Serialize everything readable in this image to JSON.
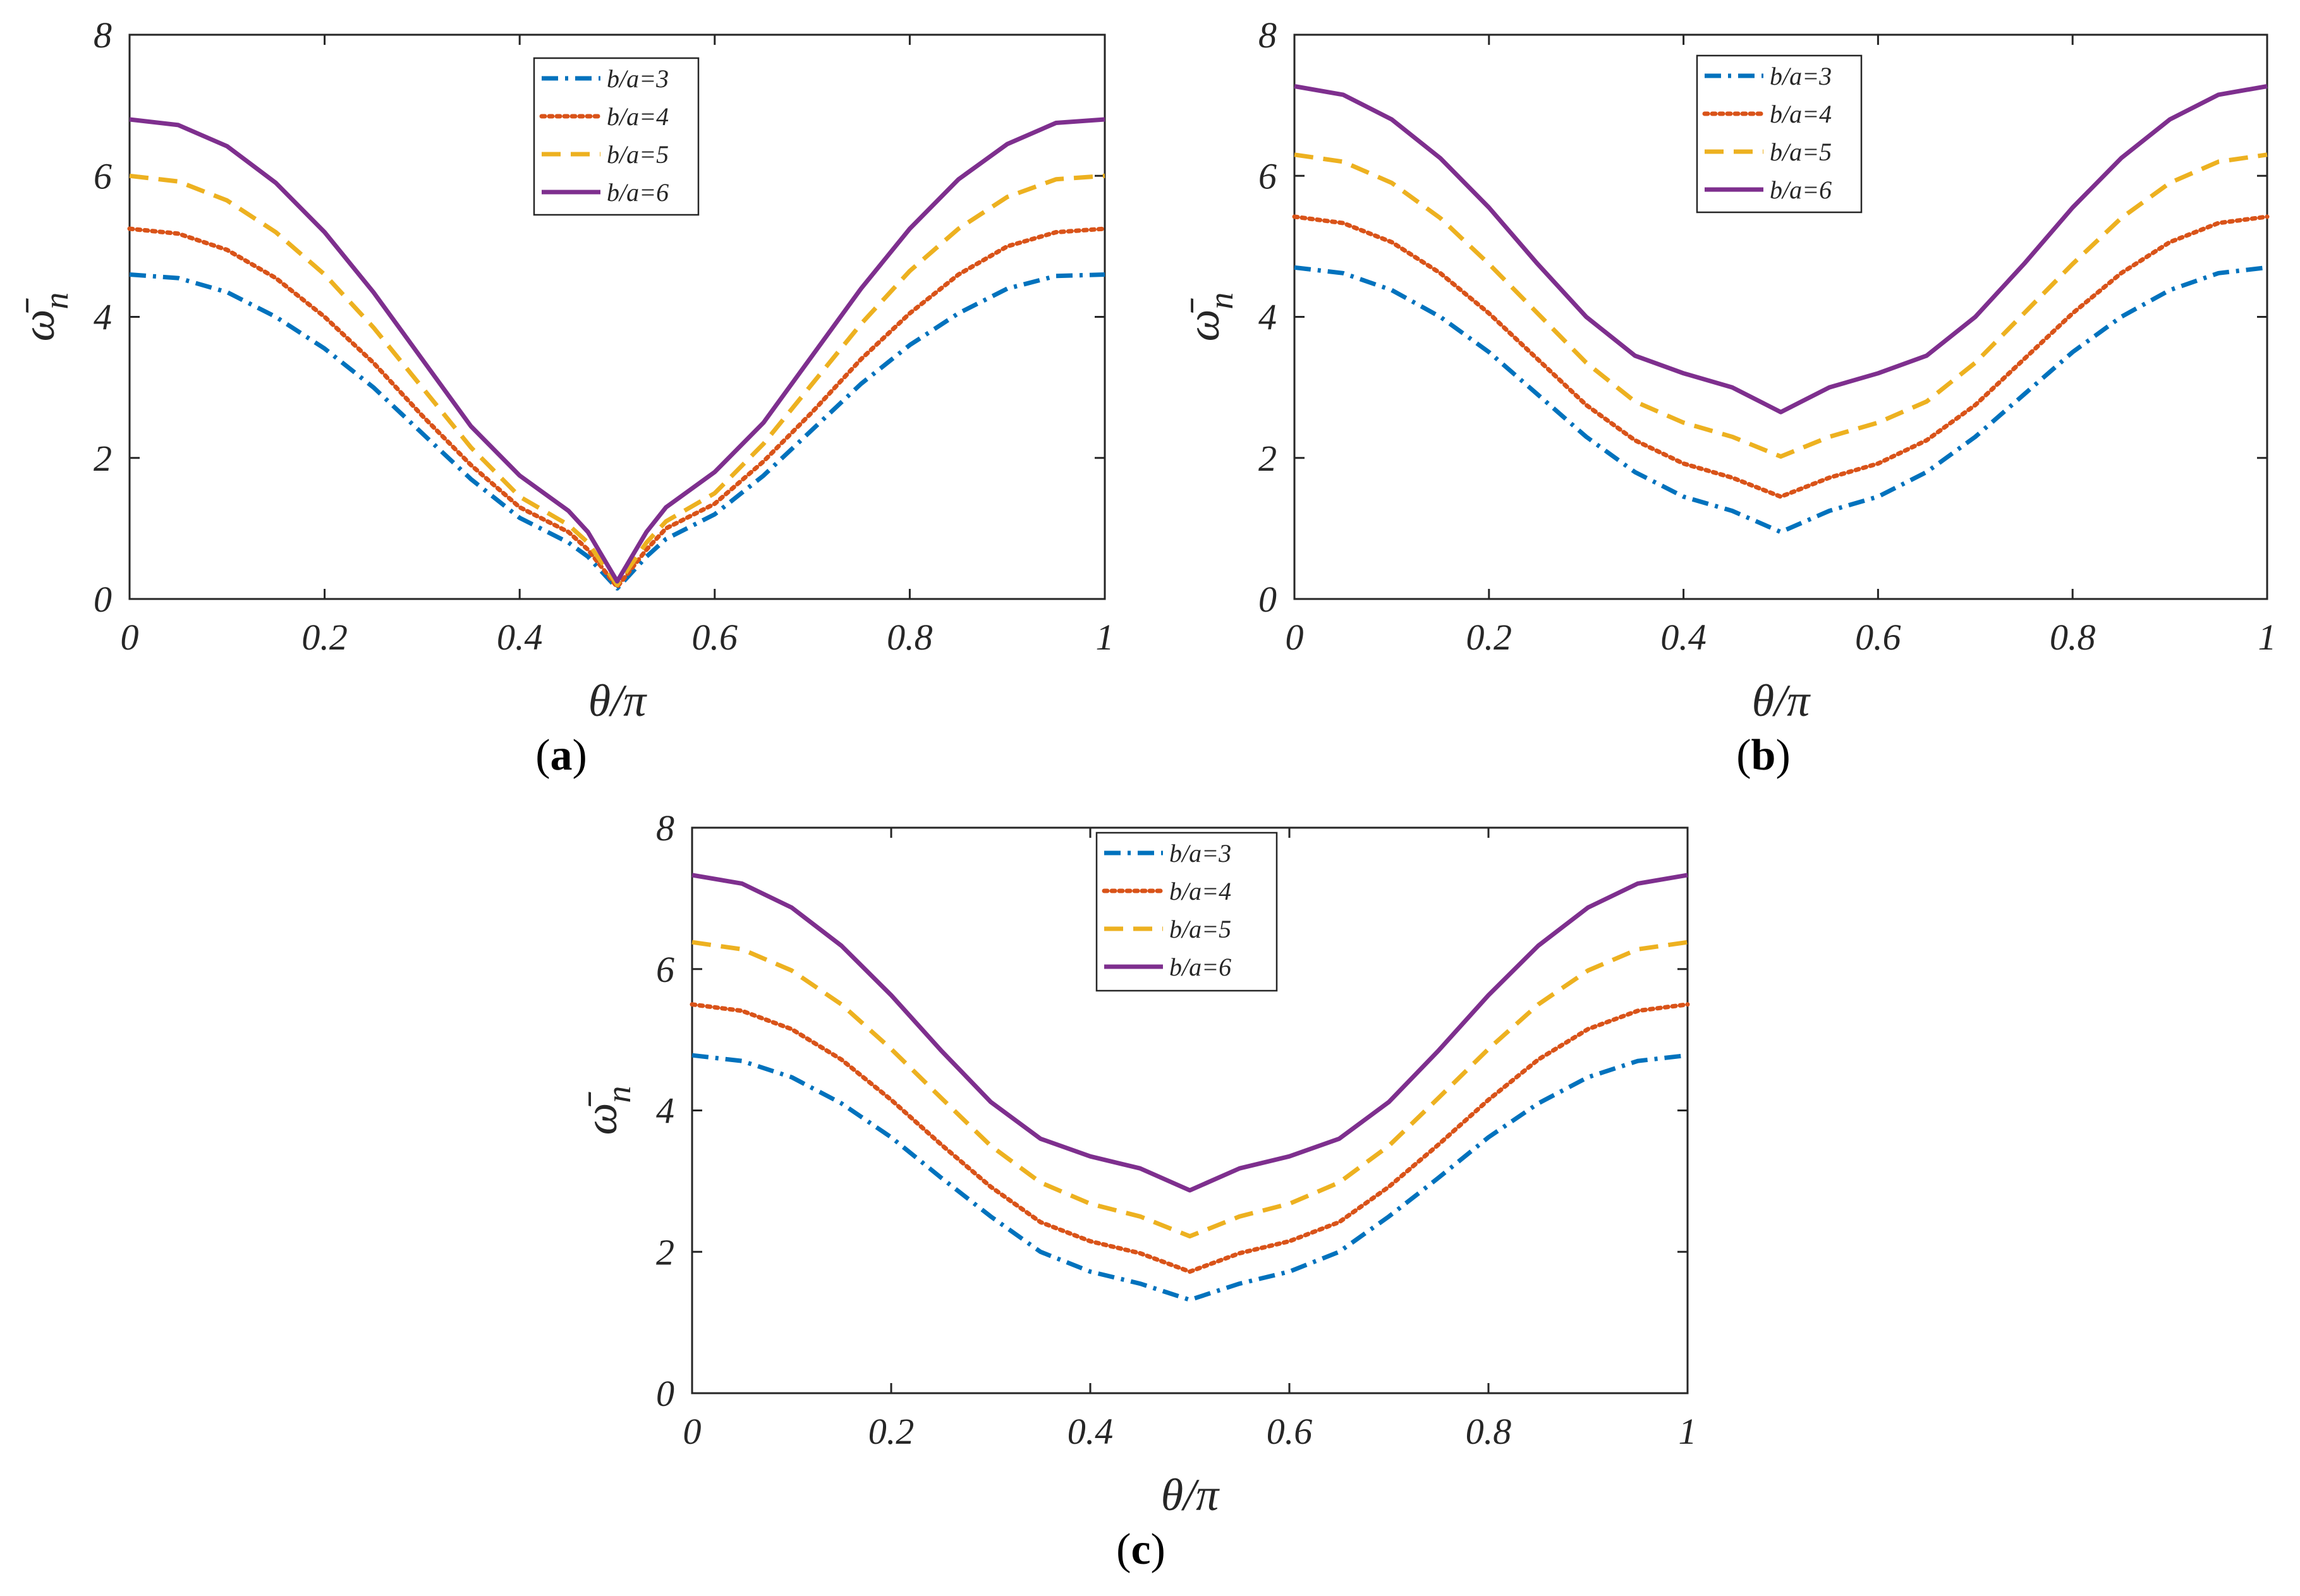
{
  "chart_data": [
    {
      "type": "line",
      "panel_label": "a",
      "xlabel": "θ/π",
      "ylabel": "ω̄",
      "ylabel_sub": "n",
      "xlim": [
        0,
        1
      ],
      "ylim": [
        0,
        8
      ],
      "xticks": [
        0,
        0.2,
        0.4,
        0.6,
        0.8,
        1
      ],
      "xtick_labels": [
        "0",
        "0.2",
        "0.4",
        "0.6",
        "0.8",
        "1"
      ],
      "yticks": [
        0,
        2,
        4,
        6,
        8
      ],
      "ytick_labels": [
        "0",
        "2",
        "4",
        "6",
        "8"
      ],
      "legend_position": "top-center",
      "x": [
        0,
        0.05,
        0.1,
        0.15,
        0.2,
        0.25,
        0.3,
        0.35,
        0.4,
        0.45,
        0.47,
        0.5,
        0.53,
        0.55,
        0.6,
        0.65,
        0.7,
        0.75,
        0.8,
        0.85,
        0.9,
        0.95,
        1
      ],
      "series": [
        {
          "name": "b/a=3",
          "color": "#0072BD",
          "style": "dashdot",
          "values": [
            4.6,
            4.55,
            4.35,
            4.0,
            3.55,
            3.0,
            2.35,
            1.7,
            1.15,
            0.8,
            0.6,
            0.15,
            0.6,
            0.85,
            1.2,
            1.75,
            2.4,
            3.05,
            3.6,
            4.05,
            4.4,
            4.58,
            4.6
          ]
        },
        {
          "name": "b/a=4",
          "color": "#D95319",
          "style": "dotted",
          "values": [
            5.25,
            5.18,
            4.95,
            4.55,
            4.0,
            3.35,
            2.6,
            1.9,
            1.3,
            0.95,
            0.7,
            0.17,
            0.7,
            1.0,
            1.35,
            1.95,
            2.65,
            3.4,
            4.05,
            4.6,
            5.0,
            5.2,
            5.25
          ]
        },
        {
          "name": "b/a=5",
          "color": "#EDB120",
          "style": "dashed",
          "values": [
            6.0,
            5.92,
            5.65,
            5.2,
            4.6,
            3.85,
            3.0,
            2.15,
            1.45,
            1.05,
            0.8,
            0.2,
            0.8,
            1.1,
            1.5,
            2.2,
            3.05,
            3.9,
            4.65,
            5.25,
            5.7,
            5.95,
            6.0
          ]
        },
        {
          "name": "b/a=6",
          "color": "#7E2F8E",
          "style": "solid",
          "values": [
            6.8,
            6.72,
            6.42,
            5.9,
            5.2,
            4.35,
            3.4,
            2.45,
            1.75,
            1.25,
            0.95,
            0.25,
            0.95,
            1.3,
            1.8,
            2.5,
            3.45,
            4.4,
            5.25,
            5.95,
            6.45,
            6.75,
            6.8
          ]
        }
      ]
    },
    {
      "type": "line",
      "panel_label": "b",
      "xlabel": "θ/π",
      "ylabel": "ω̄",
      "ylabel_sub": "n",
      "xlim": [
        0,
        1
      ],
      "ylim": [
        0,
        8
      ],
      "xticks": [
        0,
        0.2,
        0.4,
        0.6,
        0.8,
        1
      ],
      "xtick_labels": [
        "0",
        "0.2",
        "0.4",
        "0.6",
        "0.8",
        "1"
      ],
      "yticks": [
        0,
        2,
        4,
        6,
        8
      ],
      "ytick_labels": [
        "0",
        "2",
        "4",
        "6",
        "8"
      ],
      "legend_position": "top-center",
      "x": [
        0,
        0.05,
        0.1,
        0.15,
        0.2,
        0.25,
        0.3,
        0.35,
        0.4,
        0.45,
        0.5,
        0.55,
        0.6,
        0.65,
        0.7,
        0.75,
        0.8,
        0.85,
        0.9,
        0.95,
        1
      ],
      "series": [
        {
          "name": "b/a=3",
          "color": "#0072BD",
          "style": "dashdot",
          "values": [
            4.7,
            4.62,
            4.38,
            4.0,
            3.5,
            2.9,
            2.3,
            1.8,
            1.45,
            1.25,
            0.95,
            1.25,
            1.45,
            1.8,
            2.3,
            2.9,
            3.5,
            4.0,
            4.38,
            4.62,
            4.7
          ]
        },
        {
          "name": "b/a=4",
          "color": "#D95319",
          "style": "dotted",
          "values": [
            5.42,
            5.33,
            5.06,
            4.62,
            4.05,
            3.4,
            2.75,
            2.25,
            1.92,
            1.72,
            1.45,
            1.72,
            1.92,
            2.25,
            2.75,
            3.4,
            4.05,
            4.62,
            5.06,
            5.33,
            5.42
          ]
        },
        {
          "name": "b/a=5",
          "color": "#EDB120",
          "style": "dashed",
          "values": [
            6.3,
            6.2,
            5.9,
            5.4,
            4.75,
            4.05,
            3.35,
            2.8,
            2.5,
            2.3,
            2.02,
            2.3,
            2.5,
            2.8,
            3.35,
            4.05,
            4.75,
            5.4,
            5.9,
            6.2,
            6.3
          ]
        },
        {
          "name": "b/a=6",
          "color": "#7E2F8E",
          "style": "solid",
          "values": [
            7.27,
            7.15,
            6.8,
            6.25,
            5.55,
            4.75,
            4.0,
            3.45,
            3.2,
            3.0,
            2.65,
            3.0,
            3.2,
            3.45,
            4.0,
            4.75,
            5.55,
            6.25,
            6.8,
            7.15,
            7.27
          ]
        }
      ]
    },
    {
      "type": "line",
      "panel_label": "c",
      "xlabel": "θ/π",
      "ylabel": "ω̄",
      "ylabel_sub": "n",
      "xlim": [
        0,
        1
      ],
      "ylim": [
        0,
        8
      ],
      "xticks": [
        0,
        0.2,
        0.4,
        0.6,
        0.8,
        1
      ],
      "xtick_labels": [
        "0",
        "0.2",
        "0.4",
        "0.6",
        "0.8",
        "1"
      ],
      "yticks": [
        0,
        2,
        4,
        6,
        8
      ],
      "ytick_labels": [
        "0",
        "2",
        "4",
        "6",
        "8"
      ],
      "legend_position": "top-center",
      "x": [
        0,
        0.05,
        0.1,
        0.15,
        0.2,
        0.25,
        0.3,
        0.35,
        0.4,
        0.45,
        0.5,
        0.55,
        0.6,
        0.65,
        0.7,
        0.75,
        0.8,
        0.85,
        0.9,
        0.95,
        1
      ],
      "series": [
        {
          "name": "b/a=3",
          "color": "#0072BD",
          "style": "dashdot",
          "values": [
            4.78,
            4.7,
            4.47,
            4.1,
            3.62,
            3.05,
            2.5,
            2.0,
            1.72,
            1.55,
            1.32,
            1.55,
            1.72,
            2.0,
            2.5,
            3.05,
            3.62,
            4.1,
            4.47,
            4.7,
            4.78
          ]
        },
        {
          "name": "b/a=4",
          "color": "#D95319",
          "style": "dotted",
          "values": [
            5.5,
            5.41,
            5.15,
            4.72,
            4.15,
            3.52,
            2.92,
            2.42,
            2.15,
            1.98,
            1.72,
            1.98,
            2.15,
            2.42,
            2.92,
            3.52,
            4.15,
            4.72,
            5.15,
            5.41,
            5.5
          ]
        },
        {
          "name": "b/a=5",
          "color": "#EDB120",
          "style": "dashed",
          "values": [
            6.38,
            6.28,
            5.98,
            5.5,
            4.87,
            4.18,
            3.5,
            2.98,
            2.68,
            2.5,
            2.22,
            2.5,
            2.68,
            2.98,
            3.5,
            4.18,
            4.87,
            5.5,
            5.98,
            6.28,
            6.38
          ]
        },
        {
          "name": "b/a=6",
          "color": "#7E2F8E",
          "style": "solid",
          "values": [
            7.33,
            7.21,
            6.87,
            6.33,
            5.63,
            4.85,
            4.12,
            3.6,
            3.35,
            3.18,
            2.87,
            3.18,
            3.35,
            3.6,
            4.12,
            4.85,
            5.63,
            6.33,
            6.87,
            7.21,
            7.33
          ]
        }
      ]
    }
  ]
}
